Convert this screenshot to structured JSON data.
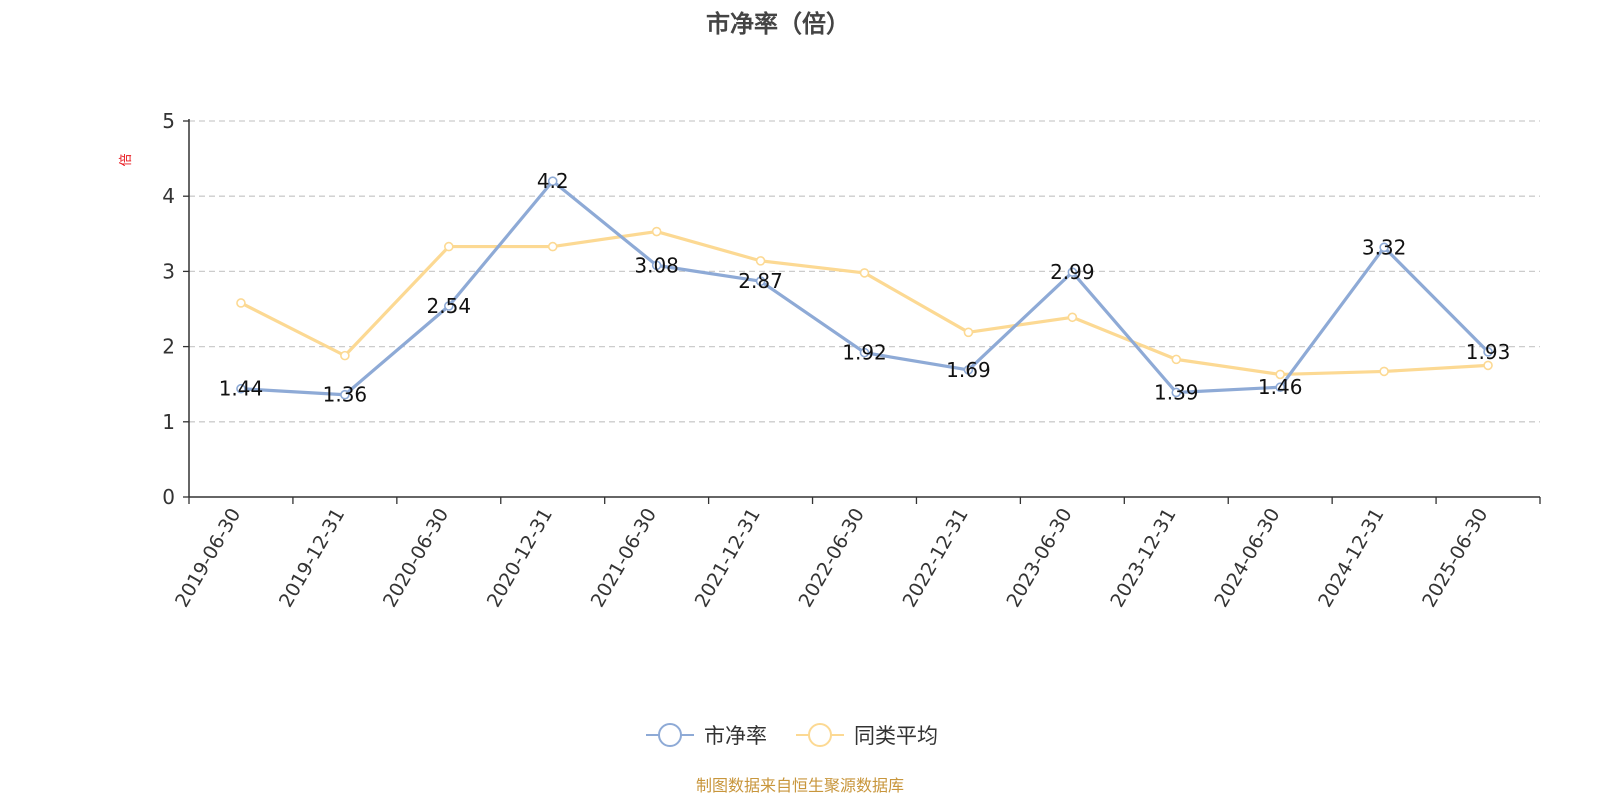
{
  "chart_data": {
    "type": "line",
    "title": "市净率（倍）",
    "ylabel": "倍",
    "xlabel": "",
    "categories": [
      "2019-06-30",
      "2019-12-31",
      "2020-06-30",
      "2020-12-31",
      "2021-06-30",
      "2021-12-31",
      "2022-06-30",
      "2022-12-31",
      "2023-06-30",
      "2023-12-31",
      "2024-06-30",
      "2024-12-31",
      "2025-06-30"
    ],
    "ylim": [
      0,
      5
    ],
    "yticks": [
      0,
      1,
      2,
      3,
      4,
      5
    ],
    "grid": true,
    "legend_position": "bottom",
    "series": [
      {
        "name": "市净率",
        "color": "#8eaad6",
        "show_labels": true,
        "values": [
          1.44,
          1.36,
          2.54,
          4.2,
          3.08,
          2.87,
          1.92,
          1.69,
          2.99,
          1.39,
          1.46,
          3.32,
          1.93
        ]
      },
      {
        "name": "同类平均",
        "color": "#fcd993",
        "show_labels": false,
        "values": [
          2.58,
          1.88,
          3.33,
          3.33,
          3.53,
          3.14,
          2.98,
          2.19,
          2.39,
          1.83,
          1.63,
          1.67,
          1.75
        ]
      }
    ],
    "source": "制图数据来自恒生聚源数据库"
  }
}
